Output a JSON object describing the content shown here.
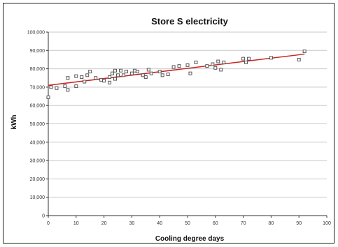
{
  "chart_data": {
    "type": "scatter",
    "title": "Store S electricity",
    "xlabel": "Cooling degree days",
    "ylabel": "kWh",
    "xlim": [
      0,
      100
    ],
    "ylim": [
      0,
      100000
    ],
    "x_ticks": [
      "0",
      "10",
      "20",
      "30",
      "40",
      "50",
      "60",
      "70",
      "80",
      "90",
      "100"
    ],
    "y_ticks": [
      "0",
      "10,000",
      "20,000",
      "30,000",
      "40,000",
      "50,000",
      "60,000",
      "70,000",
      "80,000",
      "90,000",
      "100,000"
    ],
    "grid": true,
    "points": [
      {
        "x": 0,
        "y": 64500
      },
      {
        "x": 1,
        "y": 70000
      },
      {
        "x": 3,
        "y": 69500
      },
      {
        "x": 6,
        "y": 70500
      },
      {
        "x": 7,
        "y": 68500
      },
      {
        "x": 7,
        "y": 75000
      },
      {
        "x": 10,
        "y": 70500
      },
      {
        "x": 10,
        "y": 76000
      },
      {
        "x": 12,
        "y": 75500
      },
      {
        "x": 13,
        "y": 73000
      },
      {
        "x": 14,
        "y": 76500
      },
      {
        "x": 15,
        "y": 78500
      },
      {
        "x": 17,
        "y": 75000
      },
      {
        "x": 19,
        "y": 74000
      },
      {
        "x": 20,
        "y": 73500
      },
      {
        "x": 22,
        "y": 75500
      },
      {
        "x": 22,
        "y": 72500
      },
      {
        "x": 23,
        "y": 77500
      },
      {
        "x": 24,
        "y": 79000
      },
      {
        "x": 24,
        "y": 74500
      },
      {
        "x": 25,
        "y": 76500
      },
      {
        "x": 26,
        "y": 79000
      },
      {
        "x": 27,
        "y": 76500
      },
      {
        "x": 28,
        "y": 78500
      },
      {
        "x": 30,
        "y": 77500
      },
      {
        "x": 31,
        "y": 79000
      },
      {
        "x": 32,
        "y": 78500
      },
      {
        "x": 34,
        "y": 76500
      },
      {
        "x": 35,
        "y": 75500
      },
      {
        "x": 36,
        "y": 79500
      },
      {
        "x": 37,
        "y": 77500
      },
      {
        "x": 40,
        "y": 78500
      },
      {
        "x": 41,
        "y": 76500
      },
      {
        "x": 43,
        "y": 77000
      },
      {
        "x": 45,
        "y": 81000
      },
      {
        "x": 47,
        "y": 81500
      },
      {
        "x": 50,
        "y": 82000
      },
      {
        "x": 51,
        "y": 77500
      },
      {
        "x": 53,
        "y": 83500
      },
      {
        "x": 57,
        "y": 81500
      },
      {
        "x": 59,
        "y": 82500
      },
      {
        "x": 60,
        "y": 80500
      },
      {
        "x": 61,
        "y": 84000
      },
      {
        "x": 62,
        "y": 79500
      },
      {
        "x": 63,
        "y": 83500
      },
      {
        "x": 70,
        "y": 85500
      },
      {
        "x": 71,
        "y": 83500
      },
      {
        "x": 72,
        "y": 85500
      },
      {
        "x": 80,
        "y": 86000
      },
      {
        "x": 90,
        "y": 85000
      },
      {
        "x": 92,
        "y": 89500
      }
    ],
    "trendline": {
      "x": [
        0,
        92
      ],
      "y": [
        71000,
        88000
      ]
    },
    "colors": {
      "trendline": "#cc2222",
      "points": "#555555",
      "grid": "#c8c8c8",
      "axes": "#333333"
    }
  }
}
